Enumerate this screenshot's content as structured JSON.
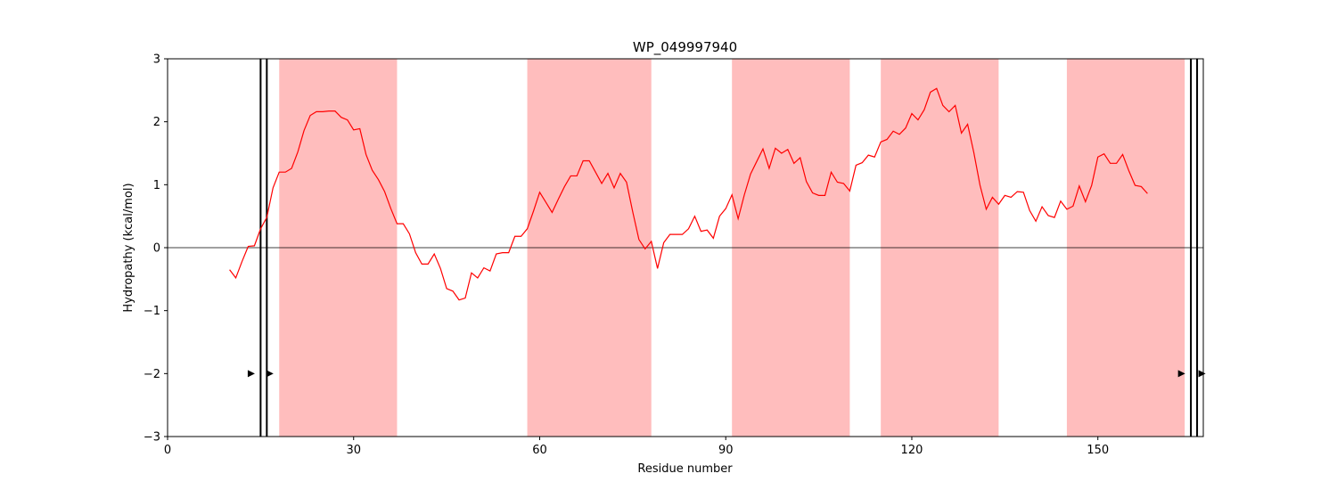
{
  "chart_data": {
    "type": "line",
    "title": "WP_049997940",
    "xlabel": "Residue number",
    "ylabel": "Hydropathy (kcal/mol)",
    "xlim": [
      0,
      167
    ],
    "ylim": [
      -3,
      3
    ],
    "xticks": [
      0,
      30,
      60,
      90,
      120,
      150
    ],
    "yticks": [
      -3,
      -2,
      -1,
      0,
      1,
      2,
      3
    ],
    "grid": false,
    "zero_line": true,
    "colors": {
      "line": "#ff0000",
      "span": "#ffbdbd",
      "marker": "#000000"
    },
    "shaded_regions": [
      [
        18,
        37
      ],
      [
        58,
        78
      ],
      [
        91,
        110
      ],
      [
        115,
        134
      ],
      [
        145,
        164
      ]
    ],
    "vertical_lines": [
      15,
      16,
      165,
      166
    ],
    "arrow_markers": [
      {
        "x": 13.5,
        "y": -2
      },
      {
        "x": 16.5,
        "y": -2
      },
      {
        "x": 163.5,
        "y": -2
      },
      {
        "x": 166.8,
        "y": -2
      }
    ],
    "series": [
      {
        "x": [
          10,
          11,
          12,
          13,
          14,
          15,
          16,
          17,
          18,
          19,
          20,
          21,
          22,
          23,
          24,
          25,
          26,
          27,
          28,
          29,
          30,
          31,
          32,
          33,
          34,
          35,
          36,
          37,
          38,
          39,
          40,
          41,
          42,
          43,
          44,
          45,
          46,
          47,
          48,
          49,
          50,
          51,
          52,
          53,
          54,
          55,
          56,
          57,
          58,
          59,
          60,
          61,
          62,
          63,
          64,
          65,
          66,
          67,
          68,
          69,
          70,
          71,
          72,
          73,
          74,
          75,
          76,
          77,
          78,
          79,
          80,
          81,
          82,
          83,
          84,
          85,
          86,
          87,
          88,
          89,
          90,
          91,
          92,
          93,
          94,
          95,
          96,
          97,
          98,
          99,
          100,
          101,
          102,
          103,
          104,
          105,
          106,
          107,
          108,
          109,
          110,
          111,
          112,
          113,
          114,
          115,
          116,
          117,
          118,
          119,
          120,
          121,
          122,
          123,
          124,
          125,
          126,
          127,
          128,
          129,
          130,
          131,
          132,
          133,
          134,
          135,
          136,
          137,
          138,
          139,
          140,
          141,
          142,
          143,
          144,
          145,
          146,
          147,
          148,
          149,
          150,
          151,
          152,
          153,
          154,
          155,
          156,
          157,
          158
        ],
        "values": [
          -0.35,
          -0.48,
          -0.22,
          0.02,
          0.03,
          0.3,
          0.48,
          0.95,
          1.2,
          1.2,
          1.26,
          1.52,
          1.86,
          2.1,
          2.16,
          2.16,
          2.17,
          2.17,
          2.07,
          2.03,
          1.87,
          1.89,
          1.48,
          1.23,
          1.08,
          0.89,
          0.62,
          0.38,
          0.38,
          0.22,
          -0.08,
          -0.26,
          -0.26,
          -0.1,
          -0.33,
          -0.65,
          -0.69,
          -0.83,
          -0.8,
          -0.4,
          -0.48,
          -0.32,
          -0.37,
          -0.1,
          -0.08,
          -0.08,
          0.18,
          0.18,
          0.3,
          0.58,
          0.88,
          0.72,
          0.56,
          0.77,
          0.97,
          1.14,
          1.14,
          1.38,
          1.38,
          1.2,
          1.02,
          1.18,
          0.95,
          1.18,
          1.04,
          0.57,
          0.13,
          -0.02,
          0.1,
          -0.33,
          0.08,
          0.21,
          0.21,
          0.21,
          0.3,
          0.5,
          0.26,
          0.28,
          0.15,
          0.5,
          0.62,
          0.84,
          0.46,
          0.84,
          1.17,
          1.37,
          1.57,
          1.26,
          1.58,
          1.5,
          1.56,
          1.34,
          1.43,
          1.05,
          0.87,
          0.83,
          0.83,
          1.2,
          1.04,
          1.02,
          0.9,
          1.31,
          1.35,
          1.47,
          1.44,
          1.68,
          1.72,
          1.85,
          1.8,
          1.9,
          2.13,
          2.03,
          2.19,
          2.47,
          2.53,
          2.26,
          2.16,
          2.26,
          1.82,
          1.96,
          1.51,
          0.99,
          0.61,
          0.8,
          0.69,
          0.83,
          0.8,
          0.89,
          0.88,
          0.59,
          0.42,
          0.65,
          0.51,
          0.48,
          0.74,
          0.61,
          0.66,
          0.98,
          0.73,
          0.99,
          1.44,
          1.49,
          1.34,
          1.34,
          1.48,
          1.22,
          0.99,
          0.97,
          0.86
        ]
      }
    ]
  }
}
